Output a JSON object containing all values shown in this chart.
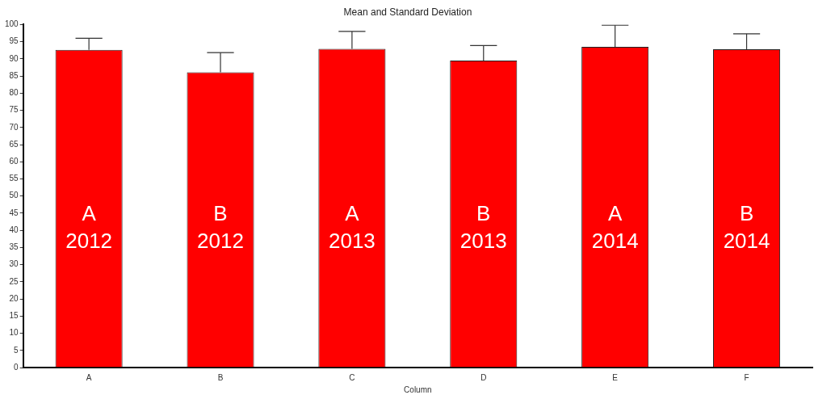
{
  "chart_data": {
    "type": "bar",
    "title": "Mean and Standard Deviation",
    "xlabel": "Column",
    "categories": [
      "A",
      "B",
      "C",
      "D",
      "E",
      "F"
    ],
    "values": [
      92.6,
      86.1,
      92.9,
      89.5,
      93.5,
      92.8
    ],
    "errors": [
      [
        92.6,
        96.0
      ],
      [
        86.1,
        91.8
      ],
      [
        92.9,
        98.0
      ],
      [
        89.5,
        93.9
      ],
      [
        93.5,
        99.8
      ],
      [
        92.8,
        97.3
      ]
    ],
    "color": "#ff0000",
    "ylim": [
      0,
      100
    ],
    "yticks": [
      0,
      5,
      10,
      15,
      20,
      25,
      30,
      35,
      40,
      45,
      50,
      55,
      60,
      65,
      70,
      75,
      80,
      85,
      90,
      95,
      100
    ],
    "grid": false,
    "legend": false,
    "annotations": [
      "A\n2012",
      "B\n2012",
      "A\n2013",
      "B\n2013",
      "A\n2014",
      "B\n2014"
    ]
  }
}
